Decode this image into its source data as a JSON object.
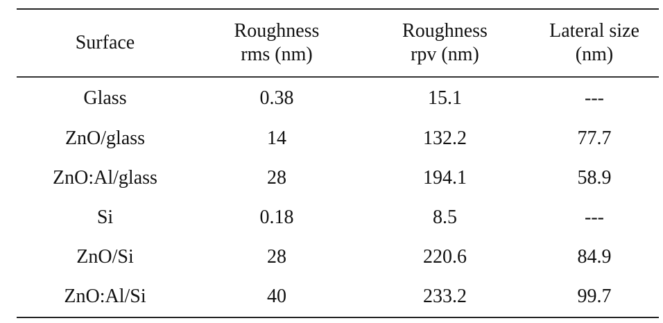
{
  "table": {
    "headers": [
      {
        "lines": [
          "Surface"
        ]
      },
      {
        "lines": [
          "Roughness",
          "rms (nm)"
        ]
      },
      {
        "lines": [
          "Roughness",
          "rpv (nm)"
        ]
      },
      {
        "lines": [
          "Lateral size",
          "(nm)"
        ]
      }
    ],
    "rows": [
      [
        "Glass",
        "0.38",
        "15.1",
        "---"
      ],
      [
        "ZnO/glass",
        "14",
        "132.2",
        "77.7"
      ],
      [
        "ZnO:Al/glass",
        "28",
        "194.1",
        "58.9"
      ],
      [
        "Si",
        "0.18",
        "8.5",
        "---"
      ],
      [
        "ZnO/Si",
        "28",
        "220.6",
        "84.9"
      ],
      [
        "ZnO:Al/Si",
        "40",
        "233.2",
        "99.7"
      ]
    ]
  }
}
